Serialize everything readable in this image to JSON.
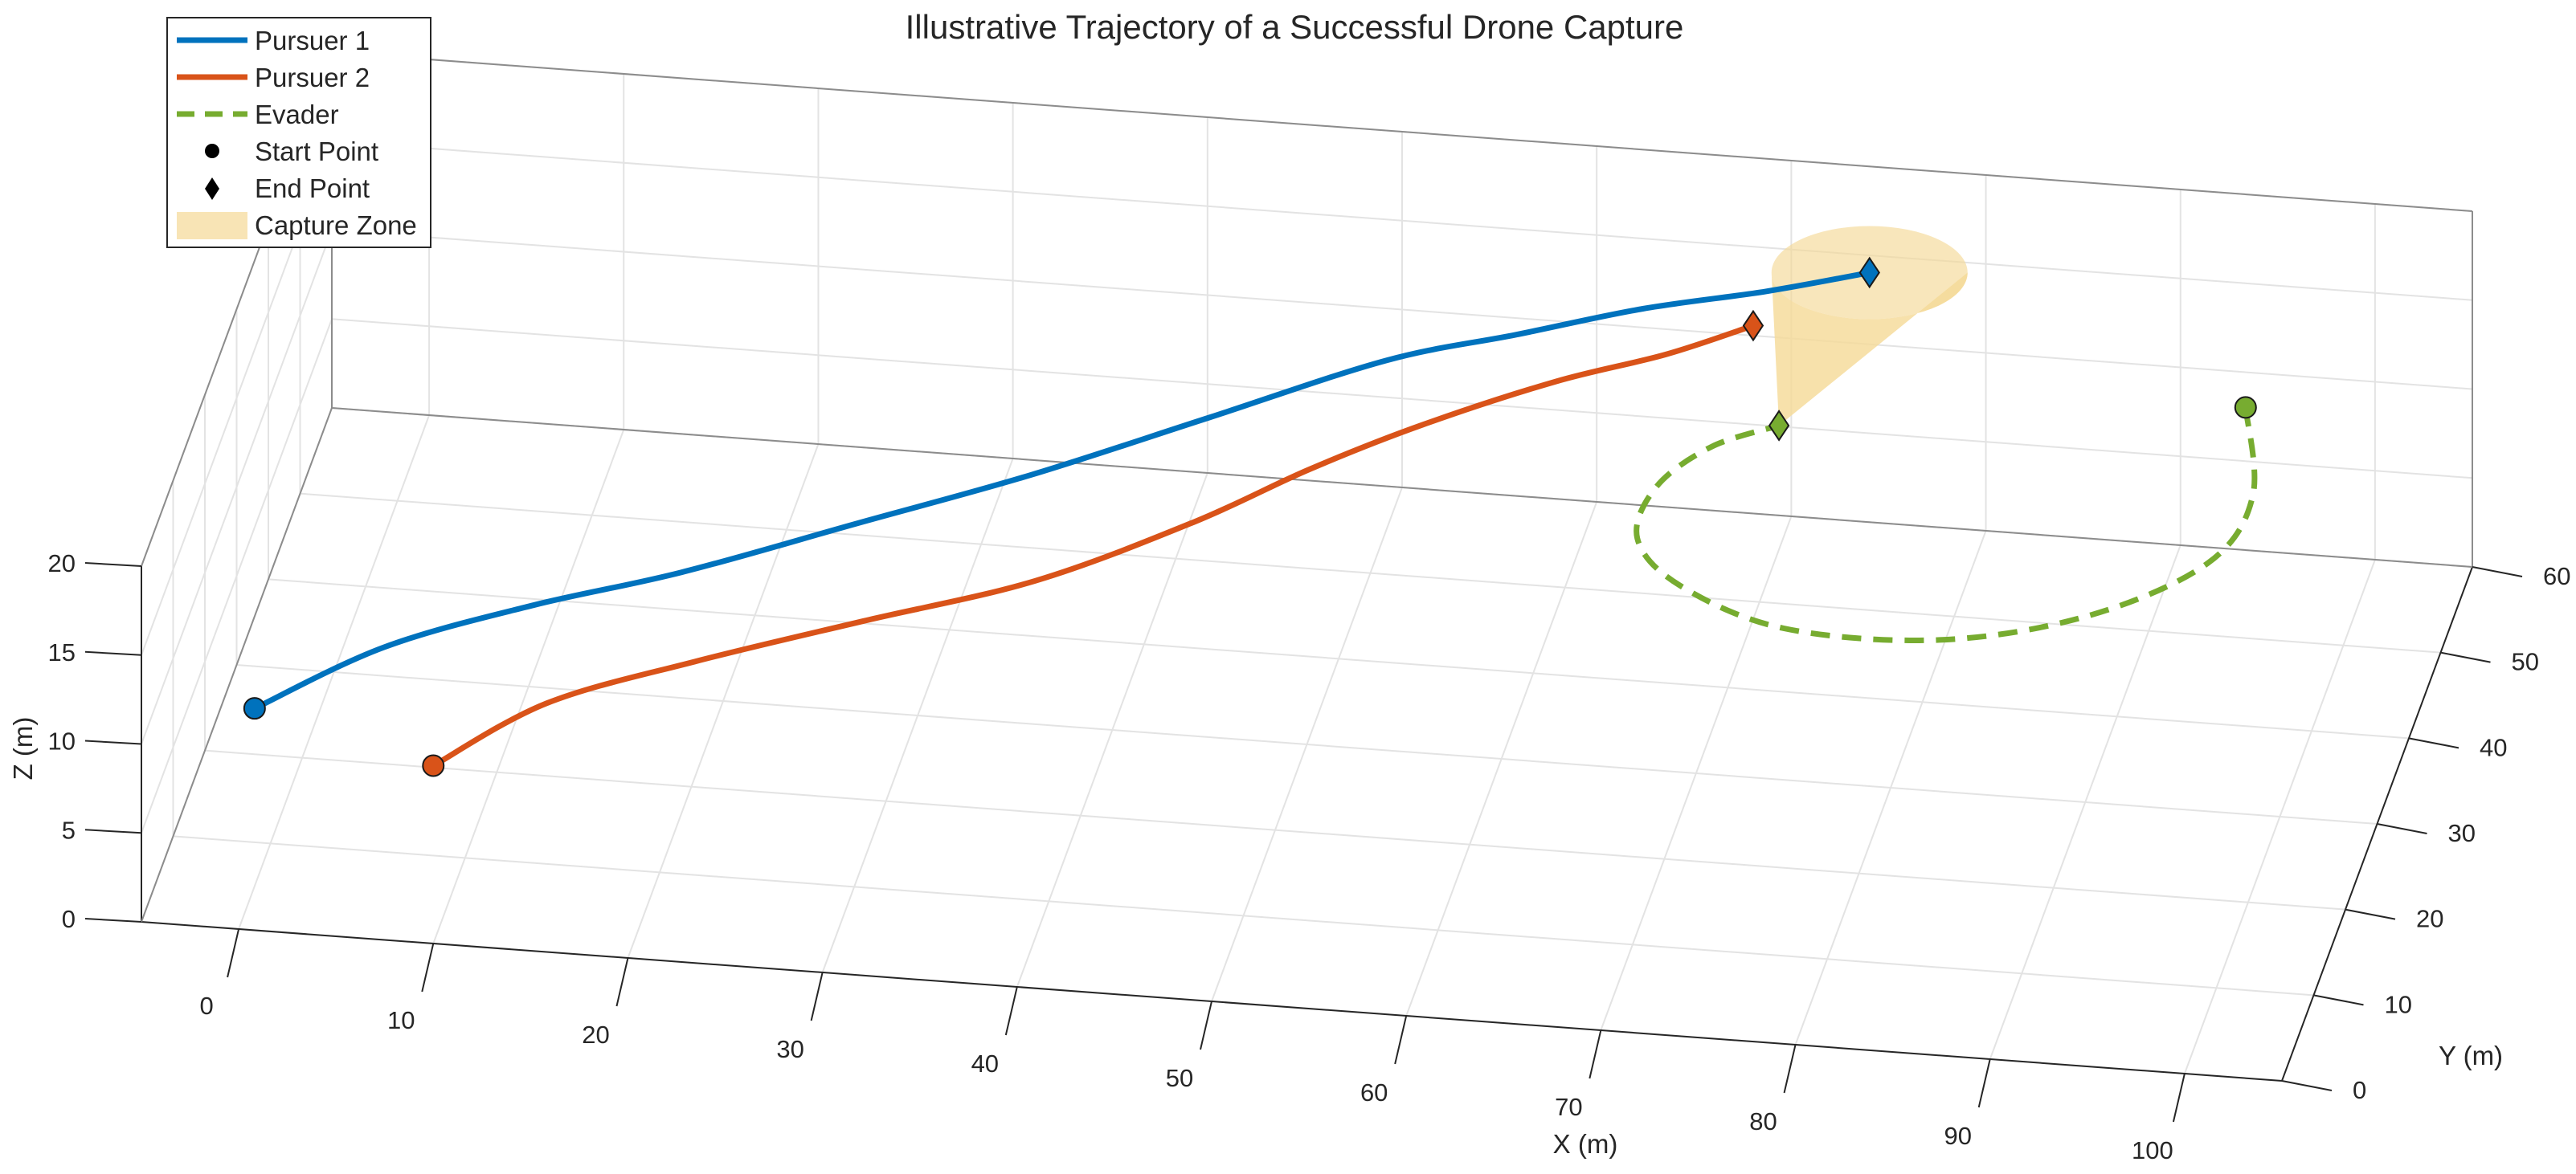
{
  "chart_data": {
    "type": "line",
    "title": "Illustrative Trajectory of a Successful Drone Capture",
    "xlabel": "X (m)",
    "ylabel": "Y (m)",
    "zlabel": "Z (m)",
    "xlim": [
      -5,
      105
    ],
    "ylim": [
      0,
      60
    ],
    "zlim": [
      0,
      20
    ],
    "xticks": [
      "0",
      "10",
      "20",
      "30",
      "40",
      "50",
      "60",
      "70",
      "80",
      "90",
      "100"
    ],
    "yticks": [
      "0",
      "10",
      "20",
      "30",
      "40",
      "50",
      "60"
    ],
    "zticks": [
      "0",
      "5",
      "10",
      "15",
      "20"
    ],
    "grid": true,
    "legend_position": "top-left",
    "legend": [
      "Pursuer 1",
      "Pursuer 2",
      "Evader",
      "Start Point",
      "End Point",
      "Capture Zone"
    ],
    "series": [
      {
        "name": "Pursuer 1",
        "color": "#0072BD",
        "style": "solid",
        "x": [
          0,
          6,
          13,
          20,
          28,
          36,
          44,
          52,
          58,
          64,
          70,
          75
        ],
        "y": [
          5,
          9,
          13,
          17,
          23,
          29,
          36,
          43,
          47,
          50,
          52,
          54
        ],
        "z": [
          10,
          12,
          13,
          13.5,
          14,
          14.5,
          15,
          15.5,
          15.5,
          16,
          16.5,
          17
        ]
      },
      {
        "name": "Pursuer 2",
        "color": "#D95319",
        "style": "solid",
        "x": [
          10,
          15,
          22,
          30,
          38,
          45,
          50,
          55,
          61,
          66,
          70
        ],
        "y": [
          0,
          5,
          9,
          13,
          18,
          25,
          31,
          36,
          41,
          45,
          48
        ],
        "z": [
          10,
          11.5,
          12.5,
          13.5,
          14,
          14.5,
          15,
          15.5,
          16,
          16,
          16.5
        ]
      },
      {
        "name": "Evader",
        "color": "#77AC30",
        "style": "dashed",
        "x": [
          94,
          96,
          95,
          90,
          83,
          75,
          69,
          66,
          66,
          68,
          71
        ],
        "y": [
          56,
          46,
          38,
          31,
          27,
          27,
          31,
          36,
          42,
          47,
          50
        ],
        "z": [
          10,
          10,
          10,
          10,
          10,
          10,
          10,
          10,
          10,
          10,
          10
        ]
      }
    ],
    "capture_zone": {
      "name": "Capture Zone",
      "color": "#F5D996",
      "apex": [
        71,
        50,
        10
      ],
      "center": [
        75,
        54,
        17
      ]
    }
  }
}
